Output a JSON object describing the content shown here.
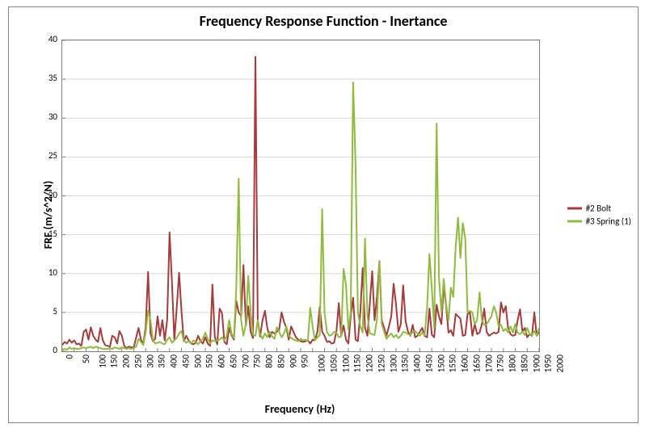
{
  "chart": {
    "type": "line",
    "title": "Frequency Response Function - Inertance",
    "title_fontsize": 18,
    "xlabel": "Frequency (Hz)",
    "ylabel": "FRF (m/s^2/N)",
    "label_fontsize": 14,
    "tick_fontsize": 11,
    "background_color": "#ffffff",
    "border_color": "#868686",
    "plot_border_color": "#808080",
    "grid_color": "#d9d9d9",
    "line_width": 2.0,
    "xlim": [
      0,
      2000
    ],
    "ylim": [
      0,
      40
    ],
    "xtick_step": 50,
    "ytick_step": 5,
    "xticks": [
      0,
      50,
      100,
      150,
      200,
      250,
      300,
      350,
      400,
      450,
      500,
      550,
      600,
      650,
      700,
      750,
      800,
      850,
      900,
      950,
      1000,
      1050,
      1100,
      1150,
      1200,
      1250,
      1300,
      1350,
      1400,
      1450,
      1500,
      1550,
      1600,
      1650,
      1700,
      1750,
      1800,
      1850,
      1900,
      1950,
      2000
    ],
    "yticks": [
      0,
      5,
      10,
      15,
      20,
      25,
      30,
      35,
      40
    ],
    "xtick_rotation": -90,
    "grid": {
      "horizontal": true,
      "vertical": false
    },
    "legend_position": "right",
    "series": [
      {
        "name": "#2 Bolt",
        "color": "#a73a3a",
        "x": [
          0,
          10,
          20,
          30,
          40,
          50,
          60,
          70,
          80,
          90,
          100,
          110,
          120,
          130,
          140,
          150,
          160,
          170,
          180,
          190,
          200,
          210,
          220,
          230,
          240,
          250,
          260,
          270,
          280,
          290,
          300,
          310,
          320,
          330,
          340,
          350,
          360,
          370,
          380,
          390,
          400,
          410,
          420,
          430,
          440,
          450,
          460,
          470,
          480,
          490,
          500,
          510,
          520,
          530,
          540,
          550,
          560,
          570,
          580,
          590,
          600,
          610,
          620,
          630,
          640,
          650,
          660,
          670,
          680,
          690,
          700,
          710,
          720,
          730,
          740,
          750,
          760,
          770,
          780,
          790,
          800,
          810,
          820,
          830,
          840,
          850,
          860,
          870,
          880,
          890,
          900,
          910,
          920,
          930,
          940,
          950,
          960,
          970,
          980,
          990,
          1000,
          1010,
          1020,
          1030,
          1040,
          1050,
          1060,
          1070,
          1080,
          1090,
          1100,
          1110,
          1120,
          1130,
          1140,
          1150,
          1160,
          1170,
          1180,
          1190,
          1200,
          1210,
          1220,
          1230,
          1240,
          1250,
          1260,
          1270,
          1280,
          1290,
          1300,
          1310,
          1320,
          1330,
          1340,
          1350,
          1360,
          1370,
          1380,
          1390,
          1400,
          1410,
          1420,
          1430,
          1440,
          1450,
          1460,
          1470,
          1480,
          1490,
          1500,
          1510,
          1520,
          1530,
          1540,
          1550,
          1560,
          1570,
          1580,
          1590,
          1600,
          1610,
          1620,
          1630,
          1640,
          1650,
          1660,
          1670,
          1680,
          1690,
          1700,
          1710,
          1720,
          1730,
          1740,
          1750,
          1760,
          1770,
          1780,
          1790,
          1800,
          1810,
          1820,
          1830,
          1840,
          1850,
          1860,
          1870,
          1880,
          1890,
          1900,
          1910,
          1920,
          1930,
          1940,
          1950,
          1960,
          1970,
          1980,
          1990,
          2000
        ],
        "y": [
          0.8,
          1.2,
          1.0,
          1.5,
          1.1,
          1.4,
          0.9,
          1.0,
          0.7,
          2.5,
          2.8,
          1.5,
          3.1,
          2.0,
          1.5,
          1.2,
          3.0,
          1.4,
          0.8,
          0.7,
          0.6,
          2.0,
          1.8,
          1.0,
          2.6,
          2.0,
          0.7,
          0.4,
          0.6,
          0.5,
          0.5,
          1.8,
          3.0,
          1.5,
          0.9,
          3.2,
          10.2,
          2.3,
          1.3,
          1.6,
          4.5,
          2.0,
          4.0,
          1.4,
          4.0,
          15.3,
          9.0,
          1.4,
          5.5,
          10.1,
          5.2,
          1.3,
          2.0,
          1.4,
          1.0,
          0.9,
          1.1,
          2.0,
          1.3,
          1.0,
          1.8,
          1.0,
          0.7,
          8.6,
          1.8,
          0.9,
          5.5,
          4.9,
          1.2,
          0.9,
          3.0,
          2.1,
          1.5,
          6.5,
          5.0,
          4.5,
          11.1,
          3.3,
          5.8,
          2.5,
          1.7,
          37.9,
          4.0,
          1.9,
          4.0,
          5.2,
          3.0,
          1.8,
          2.5,
          2.3,
          2.5,
          2.8,
          5.0,
          3.8,
          3.0,
          1.5,
          3.2,
          2.5,
          1.8,
          1.5,
          1.3,
          1.2,
          1.3,
          1.4,
          1.0,
          1.5,
          1.4,
          2.5,
          5.7,
          2.5,
          2.0,
          1.2,
          1.3,
          1.0,
          1.1,
          2.6,
          6.2,
          2.0,
          3.3,
          1.5,
          1.0,
          4.5,
          6.9,
          1.5,
          1.3,
          5.0,
          10.7,
          3.0,
          2.0,
          6.2,
          10.3,
          4.0,
          7.0,
          11.6,
          4.0,
          3.0,
          2.0,
          3.2,
          4.5,
          8.7,
          6.0,
          2.5,
          3.5,
          8.5,
          3.9,
          2.5,
          2.0,
          3.4,
          1.8,
          2.0,
          2.5,
          3.0,
          2.0,
          1.8,
          5.5,
          2.1,
          1.8,
          6.0,
          4.5,
          3.5,
          8.4,
          5.8,
          2.4,
          2.7,
          2.0,
          4.8,
          4.5,
          4.2,
          2.0,
          2.1,
          4.8,
          5.0,
          2.0,
          3.5,
          2.2,
          2.4,
          3.5,
          5.5,
          2.5,
          2.0,
          2.2,
          2.4,
          2.3,
          2.5,
          6.3,
          5.0,
          5.8,
          3.0,
          2.2,
          2.0,
          2.1,
          4.0,
          5.4,
          2.5,
          3.0,
          1.8,
          2.2,
          2.0,
          5.0,
          2.0,
          2.5
        ]
      },
      {
        "name": "#3 Spring (1)",
        "color": "#8fbb3e",
        "x": [
          0,
          10,
          20,
          30,
          40,
          50,
          60,
          70,
          80,
          90,
          100,
          110,
          120,
          130,
          140,
          150,
          160,
          170,
          180,
          190,
          200,
          210,
          220,
          230,
          240,
          250,
          260,
          270,
          280,
          290,
          300,
          310,
          320,
          330,
          340,
          350,
          360,
          370,
          380,
          390,
          400,
          410,
          420,
          430,
          440,
          450,
          460,
          470,
          480,
          490,
          500,
          510,
          520,
          530,
          540,
          550,
          560,
          570,
          580,
          590,
          600,
          610,
          620,
          630,
          640,
          650,
          660,
          670,
          680,
          690,
          700,
          710,
          720,
          730,
          740,
          750,
          760,
          770,
          780,
          790,
          800,
          810,
          820,
          830,
          840,
          850,
          860,
          870,
          880,
          890,
          900,
          910,
          920,
          930,
          940,
          950,
          960,
          970,
          980,
          990,
          1000,
          1010,
          1020,
          1030,
          1040,
          1050,
          1060,
          1070,
          1080,
          1090,
          1100,
          1110,
          1120,
          1130,
          1140,
          1150,
          1160,
          1170,
          1180,
          1190,
          1200,
          1210,
          1220,
          1230,
          1240,
          1250,
          1260,
          1270,
          1280,
          1290,
          1300,
          1310,
          1320,
          1330,
          1340,
          1350,
          1360,
          1370,
          1380,
          1390,
          1400,
          1410,
          1420,
          1430,
          1440,
          1450,
          1460,
          1470,
          1480,
          1490,
          1500,
          1510,
          1520,
          1530,
          1540,
          1550,
          1560,
          1570,
          1580,
          1590,
          1600,
          1610,
          1620,
          1630,
          1640,
          1650,
          1660,
          1670,
          1680,
          1690,
          1700,
          1710,
          1720,
          1730,
          1740,
          1750,
          1760,
          1770,
          1780,
          1790,
          1800,
          1810,
          1820,
          1830,
          1840,
          1850,
          1860,
          1870,
          1880,
          1890,
          1900,
          1910,
          1920,
          1930,
          1940,
          1950,
          1960,
          1970,
          1980,
          1990,
          2000
        ],
        "y": [
          0.2,
          0.3,
          0.2,
          0.5,
          0.3,
          0.4,
          0.3,
          0.3,
          0.4,
          0.5,
          0.4,
          0.5,
          0.6,
          0.4,
          0.6,
          0.5,
          0.4,
          0.3,
          0.3,
          0.3,
          0.4,
          0.3,
          0.5,
          0.4,
          0.3,
          0.5,
          0.4,
          0.3,
          0.4,
          0.3,
          0.4,
          0.6,
          1.6,
          1.2,
          0.8,
          2.5,
          5.2,
          4.0,
          1.5,
          1.0,
          1.1,
          1.2,
          1.0,
          0.9,
          1.5,
          1.8,
          1.1,
          1.4,
          1.7,
          2.3,
          2.6,
          1.4,
          1.1,
          1.3,
          1.0,
          1.4,
          1.2,
          0.9,
          1.3,
          1.6,
          2.4,
          1.6,
          1.0,
          1.4,
          1.3,
          1.4,
          1.5,
          1.8,
          1.4,
          2.0,
          4.0,
          2.3,
          1.7,
          8.0,
          22.2,
          4.0,
          2.0,
          3.5,
          9.7,
          5.0,
          2.1,
          2.0,
          4.0,
          2.2,
          1.6,
          2.3,
          1.8,
          2.5,
          1.9,
          1.6,
          3.1,
          2.5,
          1.8,
          2.3,
          3.2,
          2.0,
          1.7,
          1.5,
          1.4,
          1.3,
          1.6,
          1.4,
          1.5,
          1.3,
          5.6,
          3.2,
          1.4,
          1.8,
          2.1,
          18.3,
          5.0,
          2.5,
          2.0,
          2.1,
          2.5,
          2.4,
          1.8,
          1.9,
          10.6,
          8.5,
          2.8,
          5.0,
          34.6,
          24.0,
          5.0,
          3.2,
          2.4,
          14.5,
          4.5,
          2.3,
          2.2,
          2.1,
          4.2,
          11.5,
          3.5,
          2.5,
          1.6,
          2.0,
          2.3,
          1.8,
          2.1,
          1.7,
          2.0,
          2.5,
          2.4,
          2.2,
          2.1,
          2.5,
          2.6,
          2.3,
          2.0,
          2.4,
          2.1,
          5.6,
          12.5,
          8.0,
          3.0,
          29.3,
          9.5,
          5.0,
          9.3,
          6.0,
          4.0,
          8.2,
          7.0,
          13.5,
          17.2,
          12.0,
          16.5,
          14.5,
          5.0,
          5.2,
          5.0,
          3.5,
          4.0,
          7.6,
          4.0,
          3.4,
          3.5,
          4.0,
          4.5,
          5.8,
          5.0,
          3.2,
          3.4,
          2.6,
          2.9,
          2.4,
          3.2,
          2.4,
          3.5,
          2.4,
          2.2,
          2.5,
          2.1,
          3.0,
          2.2,
          2.1,
          2.6,
          2.0,
          3.0
        ]
      }
    ]
  }
}
